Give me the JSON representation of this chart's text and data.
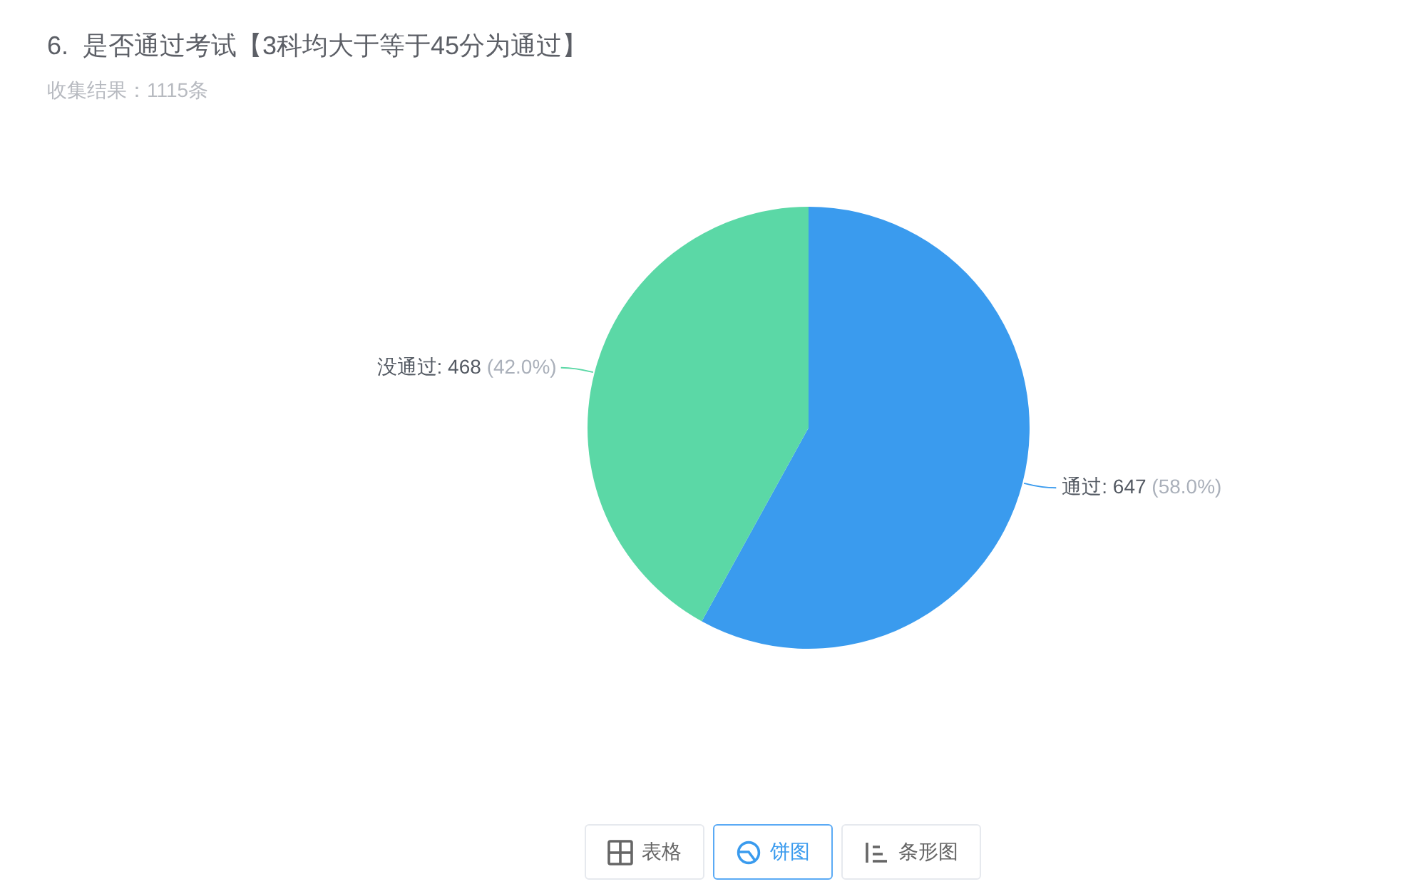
{
  "chart_data": {
    "type": "pie",
    "title": "6.  是否通过考试【3科均大于等于45分为通过】",
    "subtitle": "收集结果：1115条",
    "categories": [
      "通过",
      "没通过"
    ],
    "values": [
      647,
      468
    ],
    "colors": [
      "#3a9bee",
      "#5bd8a6"
    ],
    "value_labels": [
      "647 (58.0%)",
      "468 (42.0%)"
    ],
    "annotations": [
      "表格",
      "饼图",
      "条形图"
    ]
  }
}
